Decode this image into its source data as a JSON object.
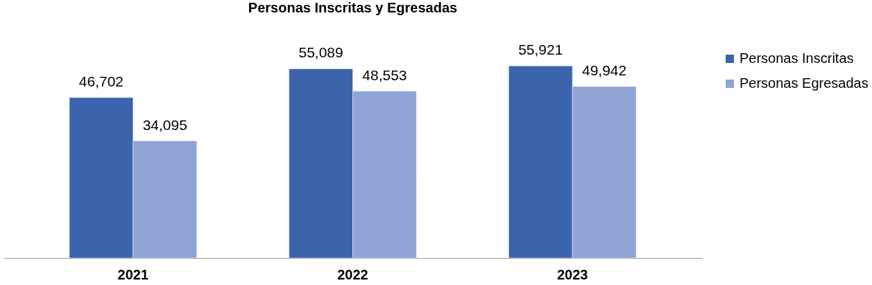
{
  "chart_data": {
    "type": "bar",
    "title": "Personas Inscritas y Egresadas",
    "categories": [
      "2021",
      "2022",
      "2023"
    ],
    "series": [
      {
        "name": "Personas Inscritas",
        "color": "#3b64ad",
        "values": [
          46702,
          55089,
          55921
        ],
        "value_labels": [
          "46,702",
          "55,089",
          "55,921"
        ]
      },
      {
        "name": "Personas Egresadas",
        "color": "#8fa3d5",
        "values": [
          34095,
          48553,
          49942
        ],
        "value_labels": [
          "34,095",
          "48,553",
          "49,942"
        ]
      }
    ],
    "legend": "right",
    "grid": false
  }
}
